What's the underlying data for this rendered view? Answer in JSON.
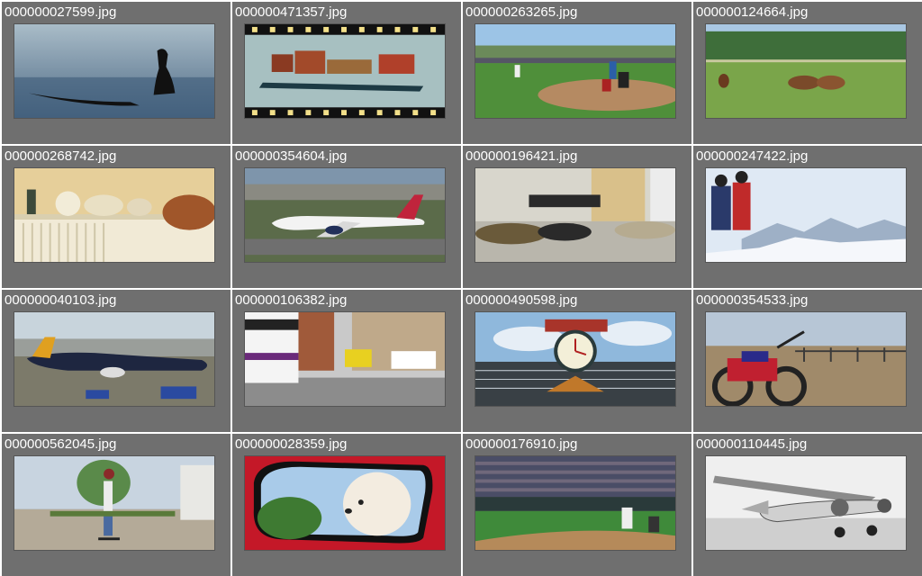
{
  "gallery": {
    "items": [
      {
        "filename": "000000027599.jpg",
        "icon": "surfer-silhouette-photo"
      },
      {
        "filename": "000000471357.jpg",
        "icon": "toy-train-film-photo"
      },
      {
        "filename": "000000263265.jpg",
        "icon": "baseball-field-photo"
      },
      {
        "filename": "000000124664.jpg",
        "icon": "horses-grazing-photo"
      },
      {
        "filename": "000000268742.jpg",
        "icon": "pottery-shelf-photo"
      },
      {
        "filename": "000000354604.jpg",
        "icon": "delta-airplane-photo"
      },
      {
        "filename": "000000196421.jpg",
        "icon": "airport-sleepers-photo"
      },
      {
        "filename": "000000247422.jpg",
        "icon": "skiers-mountains-photo"
      },
      {
        "filename": "000000040103.jpg",
        "icon": "whale-airplane-photo"
      },
      {
        "filename": "000000106382.jpg",
        "icon": "city-bus-street-photo"
      },
      {
        "filename": "000000490598.jpg",
        "icon": "ballpark-clock-photo"
      },
      {
        "filename": "000000354533.jpg",
        "icon": "motorcycle-desert-photo"
      },
      {
        "filename": "000000562045.jpg",
        "icon": "skateboarder-photo"
      },
      {
        "filename": "000000028359.jpg",
        "icon": "dog-car-mirror-photo"
      },
      {
        "filename": "000000176910.jpg",
        "icon": "baseball-stadium-photo"
      },
      {
        "filename": "000000110445.jpg",
        "icon": "vintage-airplane-photo"
      }
    ]
  }
}
